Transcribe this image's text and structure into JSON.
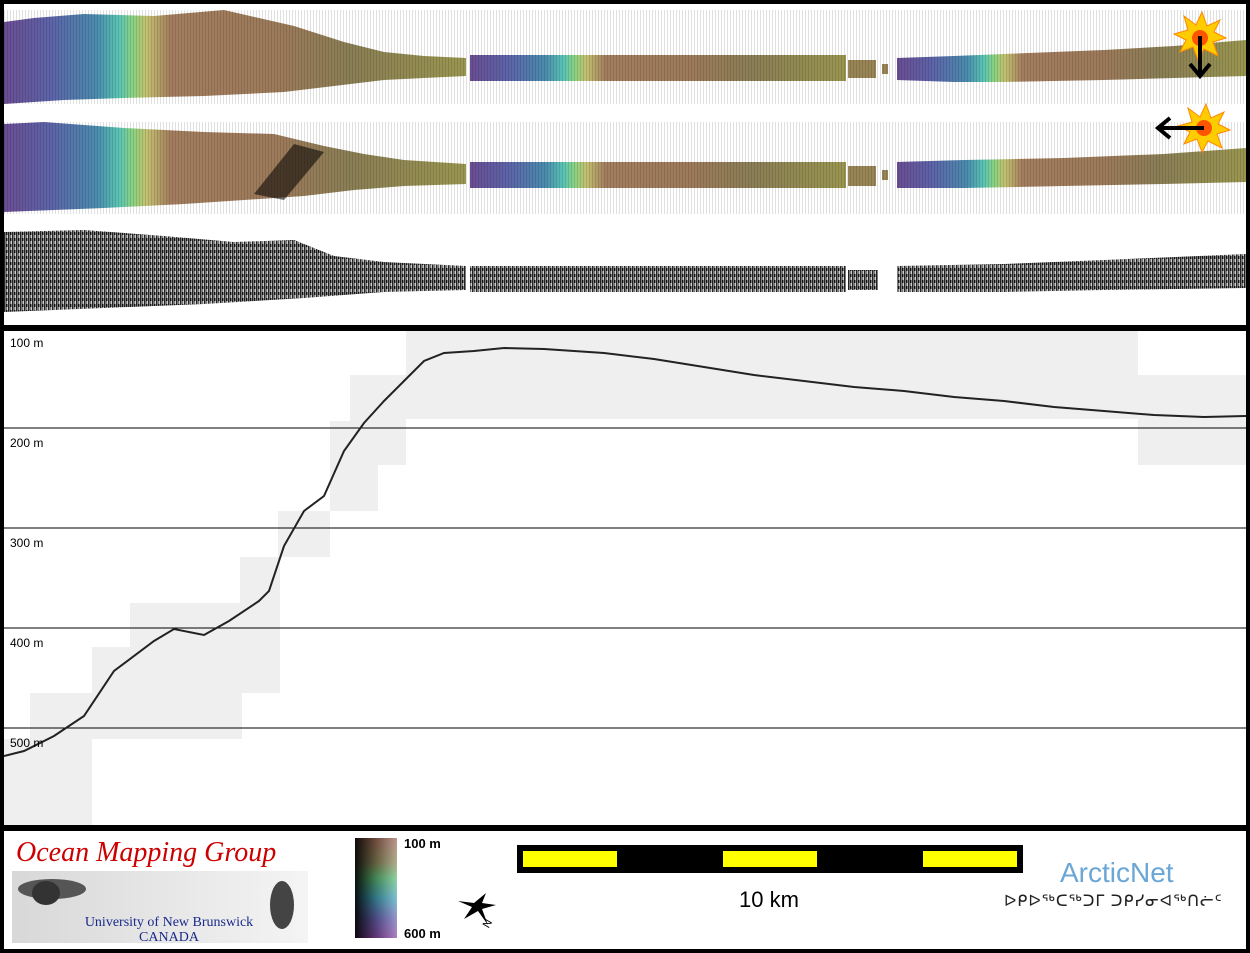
{
  "depth_profile": {
    "depth_labels": [
      "100 m",
      "200 m",
      "300 m",
      "400 m",
      "500 m"
    ]
  },
  "legend": {
    "organization": "Ocean Mapping Group",
    "university_line1": "University of New Brunswick",
    "university_line2": "CANADA",
    "colorbar_top": "100 m",
    "colorbar_bottom": "600 m",
    "scale_label": "10 km",
    "partner": "ArcticNet",
    "partner_syllabics": "ᐅᑭᐅᖅᑕᖅᑐᒥ ᑐᑭᓯᓂᐊᖅᑎᓖᑦ",
    "north_label": "N"
  },
  "colors": {
    "scale_yellow": "#ffff00",
    "title_red": "#cc0000",
    "arctic_blue": "#6aa6d6"
  }
}
